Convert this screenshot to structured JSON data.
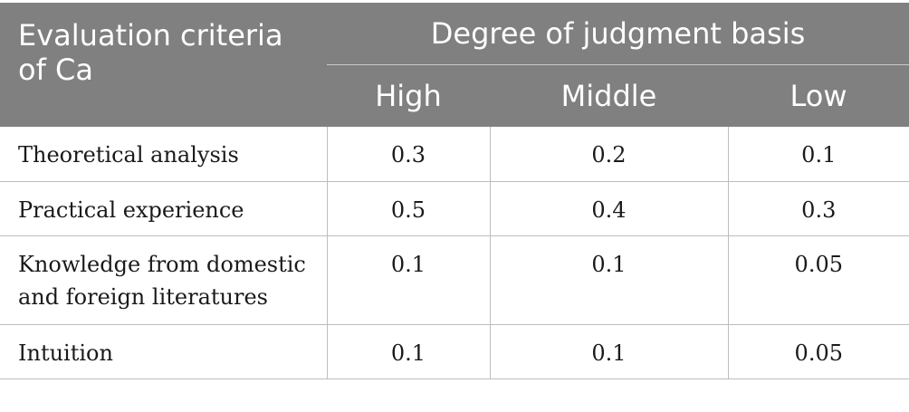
{
  "table": {
    "header": {
      "criteria": "Evaluation criteria of Ca",
      "group": "Degree of judgment basis",
      "levels": [
        "High",
        "Middle",
        "Low"
      ]
    },
    "rows": [
      {
        "criteria": "Theoretical analysis",
        "values": [
          "0.3",
          "0.2",
          "0.1"
        ]
      },
      {
        "criteria": "Practical experience",
        "values": [
          "0.5",
          "0.4",
          "0.3"
        ]
      },
      {
        "criteria": "Knowledge from domestic and foreign literatures",
        "values": [
          "0.1",
          "0.1",
          "0.05"
        ]
      },
      {
        "criteria": "Intuition",
        "values": [
          "0.1",
          "0.1",
          "0.05"
        ]
      }
    ]
  }
}
